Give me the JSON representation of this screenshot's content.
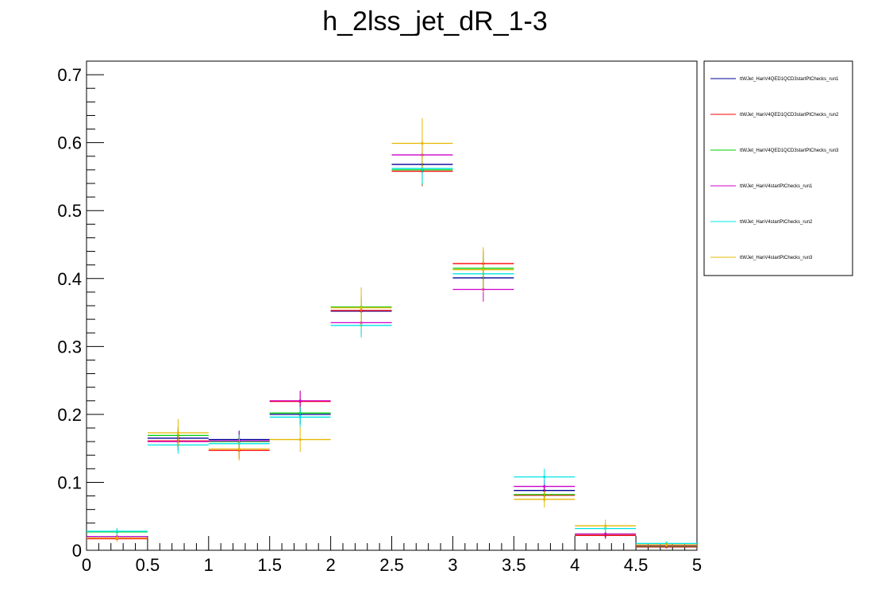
{
  "chart_data": {
    "type": "line",
    "title": "h_2lss_jet_dR_1-3",
    "xlabel": "",
    "ylabel": "",
    "xlim": [
      0,
      5
    ],
    "ylim": [
      0,
      0.72
    ],
    "grid": false,
    "legend_position": "top-right, outside plot",
    "x_bin_edges": [
      0,
      0.5,
      1,
      1.5,
      2,
      2.5,
      3,
      3.5,
      4,
      4.5,
      5
    ],
    "x_ticks": [
      "0",
      "0.5",
      "1",
      "1.5",
      "2",
      "2.5",
      "3",
      "3.5",
      "4",
      "4.5",
      "5"
    ],
    "y_ticks": [
      "0",
      "0.1",
      "0.2",
      "0.3",
      "0.4",
      "0.5",
      "0.6",
      "0.7"
    ],
    "series": [
      {
        "name": "ttWJet_HanV4QED1QCD3startPtChecks_run1",
        "color": "#000099",
        "values": [
          0.02,
          0.165,
          0.163,
          0.2,
          0.352,
          0.568,
          0.401,
          0.088,
          0.022,
          0.005
        ],
        "errors": [
          0.005,
          0.013,
          0.013,
          0.015,
          0.018,
          0.022,
          0.018,
          0.01,
          0.005,
          0.002
        ]
      },
      {
        "name": "ttWJet_HanV4QED1QCD3startPtChecks_run2",
        "color": "#ff0000",
        "values": [
          0.017,
          0.161,
          0.147,
          0.219,
          0.353,
          0.558,
          0.422,
          0.081,
          0.022,
          0.005
        ],
        "errors": [
          0.004,
          0.013,
          0.012,
          0.015,
          0.018,
          0.022,
          0.019,
          0.009,
          0.005,
          0.002
        ]
      },
      {
        "name": "ttWJet_HanV4QED1QCD3startPtChecks_run3",
        "color": "#00cc00",
        "values": [
          0.027,
          0.169,
          0.16,
          0.202,
          0.358,
          0.56,
          0.415,
          0.082,
          0.024,
          0.006
        ],
        "errors": [
          0.005,
          0.013,
          0.013,
          0.015,
          0.018,
          0.022,
          0.019,
          0.009,
          0.005,
          0.002
        ]
      },
      {
        "name": "ttWJet_HanV4startPtChecks_run1",
        "color": "#cc00cc",
        "values": [
          0.02,
          0.16,
          0.161,
          0.22,
          0.335,
          0.582,
          0.384,
          0.094,
          0.024,
          0.007
        ],
        "errors": [
          0.005,
          0.013,
          0.013,
          0.015,
          0.018,
          0.022,
          0.018,
          0.01,
          0.005,
          0.003
        ]
      },
      {
        "name": "ttWJet_HanV4startPtChecks_run2",
        "color": "#00e5e5",
        "values": [
          0.028,
          0.155,
          0.157,
          0.196,
          0.331,
          0.562,
          0.407,
          0.108,
          0.032,
          0.01
        ],
        "errors": [
          0.005,
          0.013,
          0.013,
          0.015,
          0.018,
          0.022,
          0.018,
          0.012,
          0.006,
          0.003
        ]
      },
      {
        "name": "ttWJet_HanV4startPtChecks_run3",
        "color": "#e6b800",
        "values": [
          0.018,
          0.173,
          0.149,
          0.163,
          0.357,
          0.599,
          0.413,
          0.075,
          0.036,
          0.008
        ],
        "errors": [
          0.005,
          0.02,
          0.017,
          0.018,
          0.03,
          0.037,
          0.033,
          0.012,
          0.009,
          0.003
        ]
      }
    ]
  }
}
